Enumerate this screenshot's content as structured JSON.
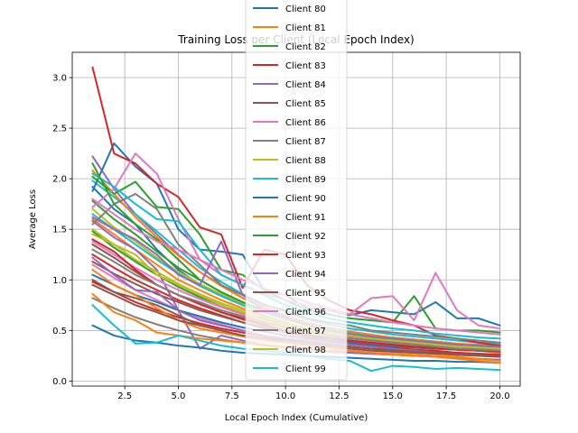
{
  "chart_data": {
    "type": "line",
    "title": "Training Loss per Client (Local Epoch Index)",
    "xlabel": "Local Epoch Index (Cumulative)",
    "ylabel": "Average Loss",
    "xlim": [
      0.05,
      20.95
    ],
    "ylim": [
      -0.05,
      3.25
    ],
    "xticks": [
      2.5,
      5.0,
      7.5,
      10.0,
      12.5,
      15.0,
      17.5,
      20.0
    ],
    "xtick_labels": [
      "2.5",
      "5.0",
      "7.5",
      "10.0",
      "12.5",
      "15.0",
      "17.5",
      "20.0"
    ],
    "yticks": [
      0.0,
      0.5,
      1.0,
      1.5,
      2.0,
      2.5,
      3.0
    ],
    "ytick_labels": [
      "0.0",
      "0.5",
      "1.0",
      "1.5",
      "2.0",
      "2.5",
      "3.0"
    ],
    "grid": true,
    "legend_position": "top-center",
    "x": [
      1,
      2,
      3,
      4,
      5,
      6,
      7,
      8,
      9,
      10,
      11,
      12,
      13,
      14,
      15,
      16,
      17,
      18,
      19,
      20
    ],
    "series": [
      {
        "name": "Client 80",
        "color": "#1f77b4",
        "values": [
          1.88,
          2.35,
          2.12,
          1.95,
          1.5,
          1.3,
          1.28,
          1.25,
          0.9,
          0.85,
          0.72,
          0.7,
          0.65,
          0.7,
          0.68,
          0.66,
          0.78,
          0.62,
          0.62,
          0.55
        ]
      },
      {
        "name": "Client 81",
        "color": "#ff7f0e",
        "values": [
          0.86,
          0.68,
          0.6,
          0.48,
          0.45,
          0.42,
          0.4,
          0.38,
          0.36,
          0.34,
          0.32,
          0.3,
          0.3,
          0.28,
          0.27,
          0.26,
          0.25,
          0.24,
          0.22,
          0.2
        ]
      },
      {
        "name": "Client 82",
        "color": "#2ca02c",
        "values": [
          2.02,
          1.85,
          1.97,
          1.72,
          1.7,
          1.45,
          1.1,
          1.05,
          0.9,
          0.8,
          0.7,
          0.66,
          0.62,
          0.6,
          0.58,
          0.84,
          0.52,
          0.5,
          0.5,
          0.48
        ]
      },
      {
        "name": "Client 83",
        "color": "#d62728",
        "values": [
          3.1,
          2.25,
          2.15,
          1.95,
          1.82,
          1.52,
          1.45,
          0.92,
          1.3,
          1.25,
          0.95,
          0.8,
          0.7,
          0.66,
          0.6,
          0.55,
          0.45,
          0.42,
          0.38,
          0.35
        ]
      },
      {
        "name": "Client 84",
        "color": "#9467bd",
        "values": [
          1.22,
          1.05,
          0.9,
          0.88,
          0.7,
          0.6,
          0.55,
          0.5,
          0.45,
          0.42,
          0.4,
          0.38,
          0.36,
          0.34,
          0.32,
          0.3,
          0.28,
          0.26,
          0.25,
          0.24
        ]
      },
      {
        "name": "Client 85",
        "color": "#8c564b",
        "values": [
          1.0,
          0.88,
          0.82,
          0.75,
          0.65,
          0.55,
          0.5,
          0.45,
          0.42,
          0.38,
          0.36,
          0.34,
          0.32,
          0.3,
          0.29,
          0.28,
          0.27,
          0.26,
          0.25,
          0.24
        ]
      },
      {
        "name": "Client 86",
        "color": "#e377c2",
        "values": [
          1.72,
          1.9,
          2.25,
          2.05,
          1.6,
          1.2,
          1.05,
          0.95,
          0.86,
          0.8,
          0.75,
          0.7,
          0.66,
          0.82,
          0.84,
          0.6,
          1.07,
          0.7,
          0.55,
          0.52
        ]
      },
      {
        "name": "Client 87",
        "color": "#7f7f7f",
        "values": [
          1.55,
          1.75,
          1.85,
          1.7,
          1.35,
          1.15,
          0.95,
          0.85,
          0.75,
          0.7,
          0.62,
          0.58,
          0.55,
          0.5,
          0.48,
          0.46,
          0.44,
          0.42,
          0.4,
          0.38
        ]
      },
      {
        "name": "Client 88",
        "color": "#bcbd22",
        "values": [
          1.45,
          1.35,
          1.25,
          1.05,
          0.95,
          0.85,
          0.75,
          0.68,
          0.6,
          0.55,
          0.5,
          0.47,
          0.45,
          0.42,
          0.4,
          0.38,
          0.36,
          0.35,
          0.33,
          0.32
        ]
      },
      {
        "name": "Client 89",
        "color": "#17becf",
        "values": [
          2.05,
          1.92,
          1.75,
          1.6,
          1.58,
          1.3,
          1.05,
          0.95,
          0.85,
          0.75,
          0.68,
          0.62,
          0.58,
          0.55,
          0.52,
          0.5,
          0.47,
          0.45,
          0.43,
          0.42
        ]
      },
      {
        "name": "Client 90",
        "color": "#1f77b4",
        "values": [
          0.55,
          0.45,
          0.4,
          0.38,
          0.35,
          0.33,
          0.3,
          0.28,
          0.27,
          0.26,
          0.25,
          0.24,
          0.23,
          0.22,
          0.21,
          0.2,
          0.2,
          0.19,
          0.19,
          0.18
        ]
      },
      {
        "name": "Client 91",
        "color": "#ff7f0e",
        "values": [
          1.1,
          0.95,
          0.85,
          0.72,
          0.6,
          0.52,
          0.48,
          0.44,
          0.4,
          0.38,
          0.35,
          0.33,
          0.3,
          0.28,
          0.26,
          0.25,
          0.24,
          0.22,
          0.2,
          0.18
        ]
      },
      {
        "name": "Client 92",
        "color": "#2ca02c",
        "values": [
          2.15,
          1.75,
          1.55,
          1.4,
          1.2,
          1.0,
          0.88,
          0.78,
          0.7,
          0.62,
          0.55,
          0.5,
          0.46,
          0.43,
          0.4,
          0.38,
          0.36,
          0.34,
          0.32,
          0.3
        ]
      },
      {
        "name": "Client 93",
        "color": "#d62728",
        "values": [
          1.4,
          1.28,
          1.1,
          0.95,
          0.85,
          0.76,
          0.68,
          0.62,
          0.56,
          0.5,
          0.46,
          0.43,
          0.4,
          0.38,
          0.36,
          0.34,
          0.33,
          0.31,
          0.3,
          0.29
        ]
      },
      {
        "name": "Client 94",
        "color": "#9467bd",
        "values": [
          1.62,
          1.5,
          1.4,
          1.25,
          1.05,
          0.95,
          1.38,
          0.85,
          0.7,
          0.62,
          0.56,
          0.5,
          0.46,
          0.44,
          0.42,
          0.4,
          0.38,
          0.36,
          0.35,
          0.34
        ]
      },
      {
        "name": "Client 95",
        "color": "#8c564b",
        "values": [
          0.95,
          0.85,
          0.75,
          0.68,
          0.6,
          0.55,
          0.5,
          0.45,
          0.42,
          0.4,
          0.38,
          0.36,
          0.34,
          0.32,
          0.3,
          0.29,
          0.28,
          0.27,
          0.26,
          0.25
        ]
      },
      {
        "name": "Client 96",
        "color": "#e377c2",
        "values": [
          1.8,
          1.65,
          1.5,
          1.38,
          1.3,
          1.2,
          1.1,
          1.0,
          0.92,
          0.85,
          0.78,
          0.72,
          0.66,
          0.62,
          0.58,
          0.55,
          0.52,
          0.5,
          0.48,
          0.46
        ]
      },
      {
        "name": "Client 97",
        "color": "#7f7f7f",
        "values": [
          1.3,
          1.18,
          1.05,
          0.95,
          0.85,
          0.78,
          0.7,
          0.64,
          0.58,
          0.53,
          0.49,
          0.45,
          0.42,
          0.4,
          0.38,
          0.36,
          0.34,
          0.32,
          0.31,
          0.3
        ]
      },
      {
        "name": "Client 98",
        "color": "#bcbd22",
        "values": [
          1.5,
          1.35,
          1.2,
          1.08,
          0.96,
          0.86,
          0.77,
          0.7,
          0.63,
          0.57,
          0.52,
          0.48,
          0.45,
          0.42,
          0.4,
          0.38,
          0.36,
          0.34,
          0.33,
          0.32
        ]
      },
      {
        "name": "Client 99",
        "color": "#17becf",
        "values": [
          0.75,
          0.55,
          0.37,
          0.38,
          0.45,
          0.4,
          0.35,
          0.32,
          0.3,
          0.28,
          0.25,
          0.22,
          0.2,
          0.1,
          0.15,
          0.14,
          0.12,
          0.13,
          0.12,
          0.11
        ]
      },
      {
        "color": "#1f77b4",
        "values": [
          1.92,
          1.7,
          1.55,
          1.3,
          1.1,
          0.95,
          0.85,
          0.75,
          0.68,
          0.62,
          0.56,
          0.52,
          0.48,
          0.45,
          0.42,
          0.4,
          0.38,
          0.36,
          0.34,
          0.33
        ]
      },
      {
        "color": "#ff7f0e",
        "values": [
          1.6,
          1.45,
          1.3,
          1.15,
          1.0,
          0.9,
          0.8,
          0.72,
          0.65,
          0.58,
          0.52,
          0.48,
          0.44,
          0.41,
          0.38,
          0.36,
          0.34,
          0.32,
          0.3,
          0.28
        ]
      },
      {
        "color": "#2ca02c",
        "values": [
          1.78,
          1.6,
          1.45,
          1.28,
          1.12,
          1.0,
          0.88,
          0.78,
          0.7,
          0.63,
          0.57,
          0.52,
          0.48,
          0.45,
          0.43,
          0.41,
          0.39,
          0.37,
          0.35,
          0.34
        ]
      },
      {
        "color": "#d62728",
        "values": [
          1.25,
          1.12,
          1.0,
          0.9,
          0.8,
          0.72,
          0.65,
          0.58,
          0.52,
          0.48,
          0.44,
          0.4,
          0.37,
          0.35,
          0.33,
          0.31,
          0.3,
          0.28,
          0.27,
          0.26
        ]
      },
      {
        "color": "#9467bd",
        "values": [
          2.22,
          1.9,
          1.65,
          1.45,
          1.25,
          1.08,
          0.95,
          0.82,
          0.72,
          0.64,
          0.57,
          0.52,
          0.48,
          0.45,
          0.42,
          0.4,
          0.38,
          0.36,
          0.35,
          0.34
        ]
      },
      {
        "color": "#8c564b",
        "values": [
          1.35,
          1.22,
          1.08,
          0.95,
          0.85,
          0.76,
          0.68,
          0.61,
          0.55,
          0.5,
          0.46,
          0.43,
          0.4,
          0.38,
          0.36,
          0.34,
          0.32,
          0.31,
          0.3,
          0.29
        ]
      },
      {
        "color": "#e377c2",
        "values": [
          1.15,
          1.02,
          0.9,
          0.8,
          0.7,
          0.62,
          0.56,
          0.5,
          0.45,
          0.41,
          0.38,
          0.35,
          0.33,
          0.31,
          0.29,
          0.28,
          0.27,
          0.26,
          0.25,
          0.24
        ]
      },
      {
        "color": "#7f7f7f",
        "values": [
          0.82,
          0.72,
          0.63,
          0.56,
          0.5,
          0.45,
          0.41,
          0.38,
          0.35,
          0.33,
          0.31,
          0.29,
          0.28,
          0.27,
          0.26,
          0.25,
          0.24,
          0.23,
          0.22,
          0.21
        ]
      },
      {
        "color": "#bcbd22",
        "values": [
          1.7,
          1.52,
          1.38,
          1.22,
          1.08,
          0.96,
          0.86,
          0.77,
          0.69,
          0.62,
          0.56,
          0.51,
          0.47,
          0.44,
          0.41,
          0.39,
          0.37,
          0.35,
          0.34,
          0.33
        ]
      },
      {
        "color": "#17becf",
        "values": [
          1.98,
          1.82,
          1.65,
          1.48,
          1.3,
          1.12,
          0.98,
          0.86,
          0.76,
          0.68,
          0.61,
          0.56,
          0.52,
          0.49,
          0.46,
          0.44,
          0.42,
          0.4,
          0.38,
          0.37
        ]
      },
      {
        "color": "#1f77b4",
        "values": [
          1.05,
          0.95,
          0.85,
          0.78,
          0.7,
          0.64,
          0.58,
          0.53,
          0.49,
          0.45,
          0.42,
          0.4,
          0.38,
          0.36,
          0.34,
          0.33,
          0.32,
          0.31,
          0.3,
          0.29
        ]
      },
      {
        "color": "#2ca02c",
        "values": [
          1.48,
          1.32,
          1.18,
          1.05,
          0.93,
          0.83,
          0.75,
          0.67,
          0.61,
          0.56,
          0.51,
          0.47,
          0.44,
          0.41,
          0.39,
          0.37,
          0.35,
          0.34,
          0.33,
          0.32
        ]
      },
      {
        "color": "#d62728",
        "values": [
          0.98,
          0.88,
          0.78,
          0.7,
          0.63,
          0.57,
          0.52,
          0.48,
          0.44,
          0.41,
          0.38,
          0.36,
          0.34,
          0.32,
          0.31,
          0.3,
          0.29,
          0.28,
          0.27,
          0.26
        ]
      },
      {
        "color": "#9467bd",
        "values": [
          1.58,
          1.42,
          1.3,
          1.1,
          0.7,
          0.32,
          0.45,
          0.4,
          0.36,
          0.33,
          0.31,
          0.29,
          0.28,
          0.27,
          0.26,
          0.25,
          0.24,
          0.23,
          0.22,
          0.21
        ]
      },
      {
        "color": "#e377c2",
        "values": [
          1.38,
          1.25,
          1.12,
          1.0,
          0.9,
          0.81,
          0.73,
          0.66,
          0.6,
          0.55,
          0.5,
          0.46,
          0.43,
          0.4,
          0.38,
          0.36,
          0.35,
          0.34,
          0.33,
          0.32
        ]
      },
      {
        "color": "#ff7f0e",
        "values": [
          2.08,
          1.85,
          1.62,
          1.42,
          1.24,
          1.08,
          0.94,
          0.82,
          0.73,
          0.65,
          0.58,
          0.53,
          0.49,
          0.46,
          0.43,
          0.41,
          0.39,
          0.37,
          0.36,
          0.35
        ]
      },
      {
        "color": "#8c564b",
        "values": [
          1.18,
          1.06,
          0.96,
          0.86,
          0.78,
          0.7,
          0.64,
          0.58,
          0.53,
          0.49,
          0.45,
          0.42,
          0.39,
          0.37,
          0.35,
          0.33,
          0.32,
          0.31,
          0.3,
          0.29
        ]
      },
      {
        "color": "#17becf",
        "values": [
          1.65,
          1.5,
          1.35,
          1.2,
          1.06,
          0.94,
          0.84,
          0.75,
          0.68,
          0.61,
          0.56,
          0.51,
          0.47,
          0.44,
          0.41,
          0.39,
          0.37,
          0.35,
          0.34,
          0.33
        ]
      }
    ]
  }
}
